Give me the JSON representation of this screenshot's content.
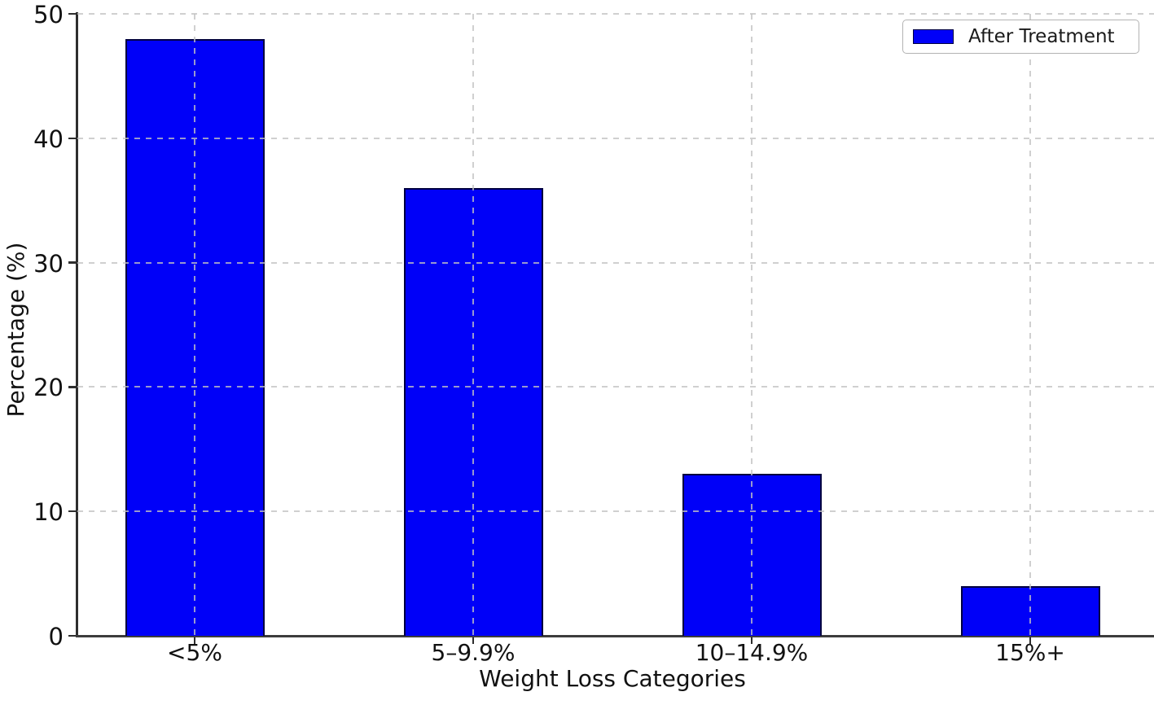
{
  "chart_data": {
    "type": "bar",
    "categories": [
      "<5%",
      "5–9.9%",
      "10–14.9%",
      "15%+"
    ],
    "series": [
      {
        "name": "After Treatment",
        "values": [
          48,
          36,
          13,
          4
        ]
      }
    ],
    "title": "",
    "xlabel": "Weight Loss Categories",
    "ylabel": "Percentage (%)",
    "ylim": [
      0,
      50
    ],
    "yticks": [
      0,
      10,
      20,
      30,
      40,
      50
    ],
    "grid": true,
    "grid_style": "dashed",
    "legend_position": "upper right",
    "colors": {
      "bar_fill": "#0000f8",
      "bar_edge": "#000040",
      "grid": "#c3c3c3",
      "axis": "#2e2e2e",
      "text": "#111111",
      "legend_border": "#b3b3b3"
    }
  }
}
